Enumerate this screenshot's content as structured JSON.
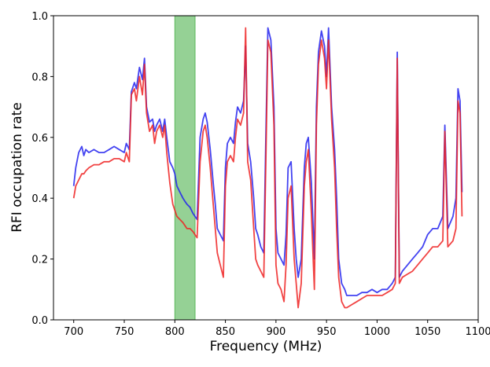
{
  "chart_data": {
    "type": "line",
    "title": "",
    "xlabel": "Frequency (MHz)",
    "ylabel": "RFI occupation rate",
    "xlim": [
      680,
      1100
    ],
    "ylim": [
      0.0,
      1.0
    ],
    "x_ticks": [
      700,
      750,
      800,
      850,
      900,
      950,
      1000,
      1050,
      1100
    ],
    "y_ticks": [
      0.0,
      0.2,
      0.4,
      0.6,
      0.8,
      1.0
    ],
    "x_tick_labels": [
      "700",
      "750",
      "800",
      "850",
      "900",
      "950",
      "1000",
      "1050",
      "1100"
    ],
    "y_tick_labels": [
      "0.0",
      "0.2",
      "0.4",
      "0.6",
      "0.8",
      "1.0"
    ],
    "grid": false,
    "legend": null,
    "highlight_band": {
      "x_start": 800,
      "x_end": 820,
      "color": "#5cb85c"
    },
    "series": [
      {
        "color": "#2222ee",
        "x": [
          700,
          702,
          705,
          708,
          710,
          712,
          715,
          720,
          725,
          730,
          735,
          740,
          745,
          750,
          752,
          755,
          757,
          760,
          762,
          765,
          768,
          770,
          772,
          775,
          778,
          780,
          782,
          785,
          788,
          790,
          792,
          795,
          798,
          800,
          802,
          805,
          808,
          810,
          812,
          815,
          818,
          820,
          822,
          825,
          828,
          830,
          832,
          835,
          838,
          840,
          842,
          845,
          848,
          850,
          852,
          855,
          858,
          860,
          862,
          865,
          868,
          870,
          872,
          875,
          878,
          880,
          882,
          885,
          888,
          890,
          892,
          895,
          898,
          900,
          902,
          905,
          908,
          910,
          912,
          915,
          918,
          920,
          922,
          925,
          928,
          930,
          932,
          935,
          938,
          940,
          942,
          945,
          948,
          950,
          952,
          955,
          958,
          960,
          962,
          965,
          968,
          970,
          975,
          980,
          985,
          990,
          995,
          1000,
          1005,
          1010,
          1015,
          1018,
          1020,
          1022,
          1025,
          1030,
          1035,
          1040,
          1045,
          1050,
          1055,
          1060,
          1065,
          1067,
          1070,
          1075,
          1078,
          1080,
          1082,
          1084
        ],
        "y": [
          0.44,
          0.5,
          0.55,
          0.57,
          0.54,
          0.56,
          0.55,
          0.56,
          0.55,
          0.55,
          0.56,
          0.57,
          0.56,
          0.55,
          0.58,
          0.56,
          0.75,
          0.78,
          0.76,
          0.83,
          0.79,
          0.86,
          0.7,
          0.65,
          0.66,
          0.62,
          0.64,
          0.66,
          0.62,
          0.66,
          0.6,
          0.52,
          0.5,
          0.48,
          0.44,
          0.42,
          0.4,
          0.39,
          0.38,
          0.37,
          0.35,
          0.34,
          0.33,
          0.6,
          0.66,
          0.68,
          0.65,
          0.56,
          0.45,
          0.38,
          0.3,
          0.28,
          0.26,
          0.5,
          0.58,
          0.6,
          0.58,
          0.65,
          0.7,
          0.68,
          0.72,
          0.9,
          0.58,
          0.52,
          0.4,
          0.3,
          0.28,
          0.24,
          0.22,
          0.6,
          0.96,
          0.92,
          0.7,
          0.3,
          0.22,
          0.2,
          0.18,
          0.28,
          0.5,
          0.52,
          0.3,
          0.2,
          0.14,
          0.2,
          0.5,
          0.58,
          0.6,
          0.45,
          0.2,
          0.7,
          0.88,
          0.95,
          0.9,
          0.8,
          0.96,
          0.7,
          0.56,
          0.4,
          0.2,
          0.12,
          0.1,
          0.08,
          0.08,
          0.08,
          0.09,
          0.09,
          0.1,
          0.09,
          0.1,
          0.1,
          0.12,
          0.14,
          0.88,
          0.14,
          0.16,
          0.18,
          0.2,
          0.22,
          0.24,
          0.28,
          0.3,
          0.3,
          0.34,
          0.64,
          0.3,
          0.34,
          0.4,
          0.76,
          0.72,
          0.42
        ]
      },
      {
        "color": "#ee2222",
        "x": [
          700,
          702,
          705,
          708,
          710,
          712,
          715,
          720,
          725,
          730,
          735,
          740,
          745,
          750,
          752,
          755,
          757,
          760,
          762,
          765,
          768,
          770,
          772,
          775,
          778,
          780,
          782,
          785,
          788,
          790,
          792,
          795,
          798,
          800,
          802,
          805,
          808,
          810,
          812,
          815,
          818,
          820,
          822,
          825,
          828,
          830,
          832,
          835,
          838,
          840,
          842,
          845,
          848,
          850,
          852,
          855,
          858,
          860,
          862,
          865,
          868,
          870,
          872,
          875,
          878,
          880,
          882,
          885,
          888,
          890,
          892,
          895,
          898,
          900,
          902,
          905,
          908,
          910,
          912,
          915,
          918,
          920,
          922,
          925,
          928,
          930,
          932,
          935,
          938,
          940,
          942,
          945,
          948,
          950,
          952,
          955,
          958,
          960,
          962,
          965,
          968,
          970,
          975,
          980,
          985,
          990,
          995,
          1000,
          1005,
          1010,
          1015,
          1018,
          1020,
          1022,
          1025,
          1030,
          1035,
          1040,
          1045,
          1050,
          1055,
          1060,
          1065,
          1067,
          1070,
          1075,
          1078,
          1080,
          1082,
          1084
        ],
        "y": [
          0.4,
          0.44,
          0.46,
          0.48,
          0.48,
          0.49,
          0.5,
          0.51,
          0.51,
          0.52,
          0.52,
          0.53,
          0.53,
          0.52,
          0.55,
          0.52,
          0.74,
          0.76,
          0.72,
          0.8,
          0.74,
          0.84,
          0.68,
          0.62,
          0.64,
          0.58,
          0.62,
          0.64,
          0.6,
          0.64,
          0.55,
          0.45,
          0.38,
          0.36,
          0.34,
          0.33,
          0.32,
          0.31,
          0.3,
          0.3,
          0.29,
          0.28,
          0.27,
          0.52,
          0.62,
          0.64,
          0.6,
          0.5,
          0.38,
          0.3,
          0.22,
          0.18,
          0.14,
          0.44,
          0.52,
          0.54,
          0.52,
          0.6,
          0.66,
          0.64,
          0.68,
          0.96,
          0.52,
          0.46,
          0.3,
          0.2,
          0.18,
          0.16,
          0.14,
          0.52,
          0.92,
          0.88,
          0.64,
          0.18,
          0.12,
          0.1,
          0.06,
          0.18,
          0.4,
          0.44,
          0.2,
          0.12,
          0.04,
          0.12,
          0.44,
          0.52,
          0.56,
          0.35,
          0.1,
          0.64,
          0.84,
          0.92,
          0.86,
          0.76,
          0.92,
          0.66,
          0.5,
          0.3,
          0.14,
          0.06,
          0.04,
          0.04,
          0.05,
          0.06,
          0.07,
          0.08,
          0.08,
          0.08,
          0.08,
          0.09,
          0.1,
          0.12,
          0.86,
          0.12,
          0.14,
          0.15,
          0.16,
          0.18,
          0.2,
          0.22,
          0.24,
          0.24,
          0.26,
          0.62,
          0.24,
          0.26,
          0.3,
          0.72,
          0.68,
          0.34
        ]
      }
    ]
  }
}
